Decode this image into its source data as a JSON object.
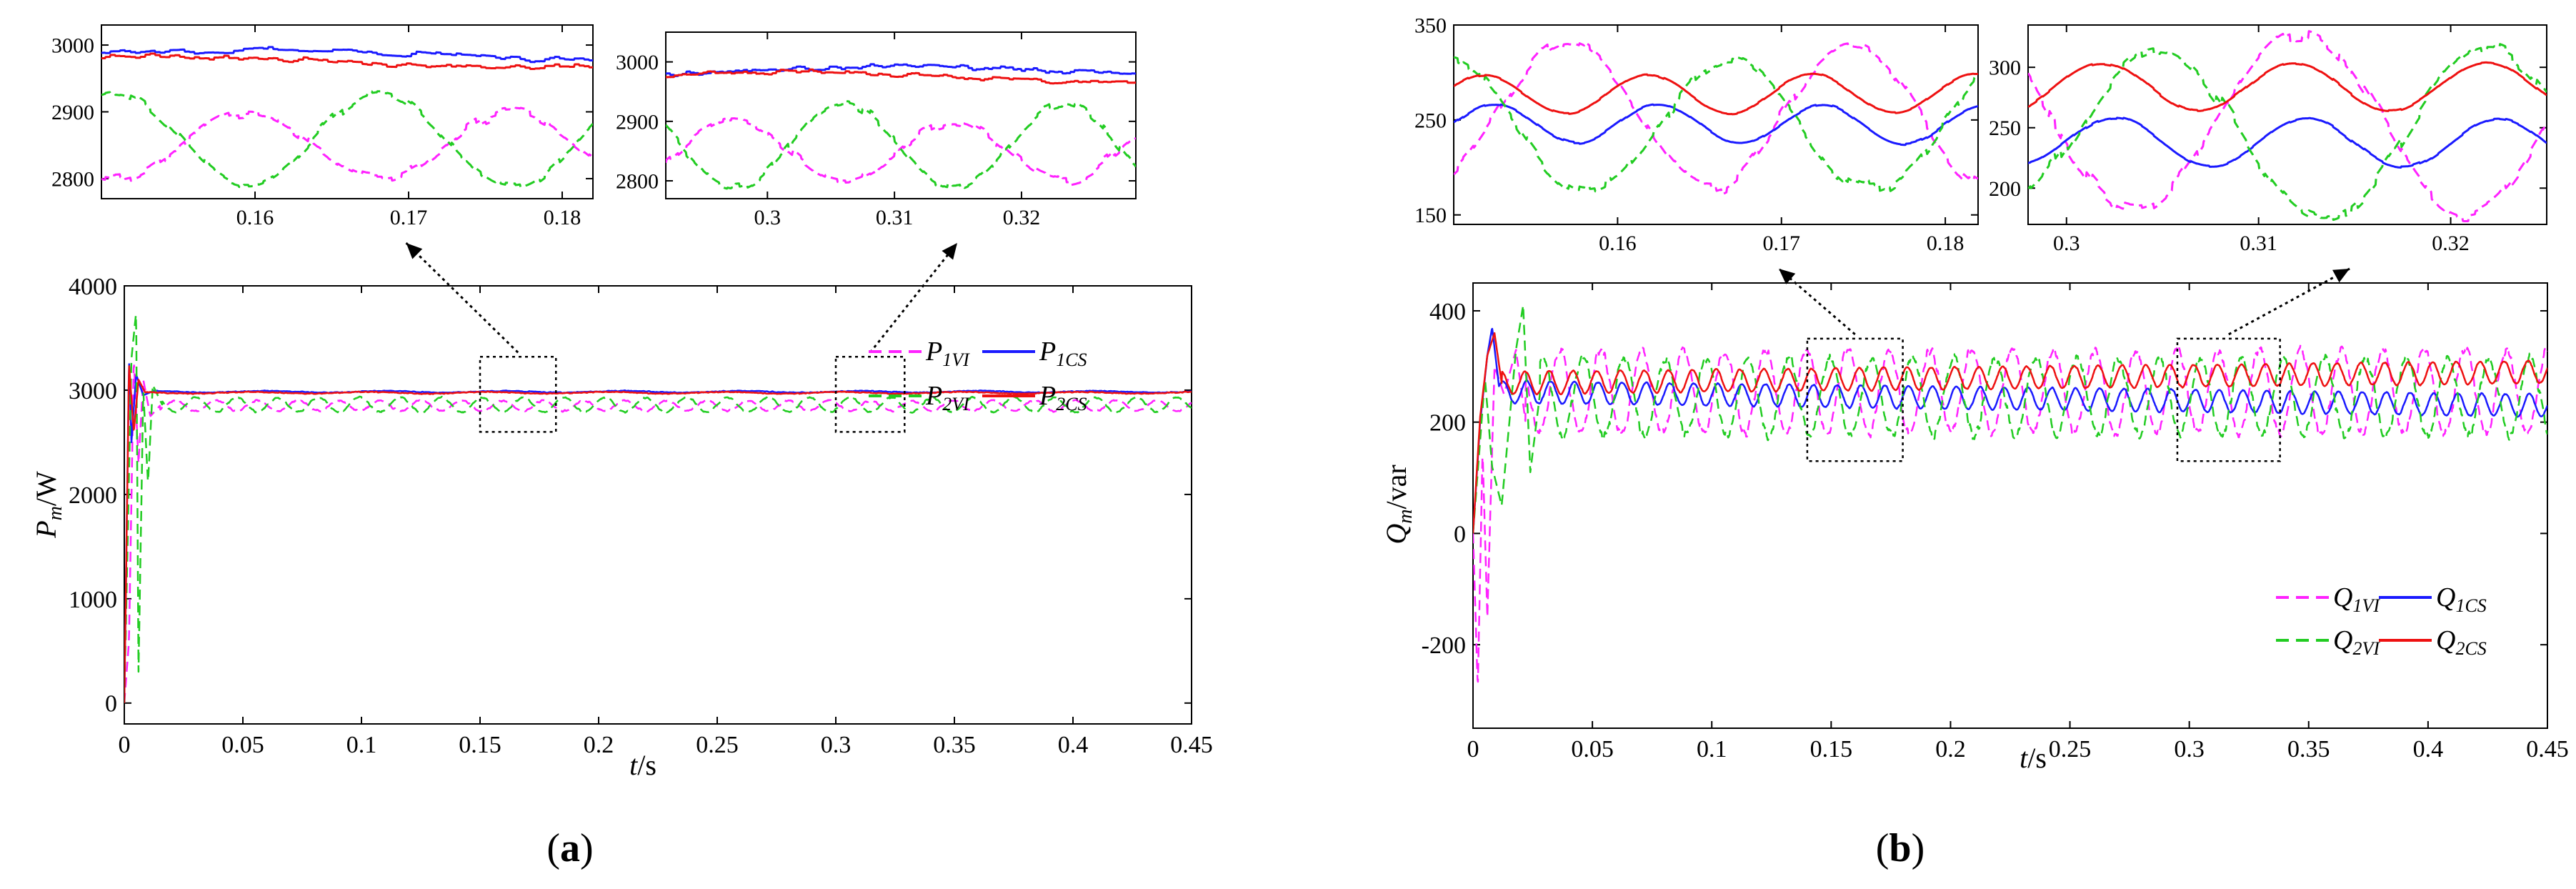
{
  "chart_data": [
    {
      "id": "a",
      "panel_label": "a",
      "type": "line",
      "xlabel": "t",
      "xlabel_unit": "/s",
      "ylabel": "P",
      "ylabel_sub": "m",
      "ylabel_unit": "/W",
      "xlim": [
        0,
        0.45
      ],
      "ylim": [
        -200,
        4000
      ],
      "xticks": [
        0,
        0.05,
        0.1,
        0.15,
        0.2,
        0.25,
        0.3,
        0.35,
        0.4,
        0.45
      ],
      "xtick_labels": [
        "0",
        "0.05",
        "0.1",
        "0.15",
        "0.2",
        "0.25",
        "0.3",
        "0.35",
        "0.4",
        "0.45"
      ],
      "yticks": [
        0,
        1000,
        2000,
        3000,
        4000
      ],
      "ytick_labels": [
        "0",
        "1000",
        "2000",
        "3000",
        "4000"
      ],
      "legend_position": "top-right",
      "series": [
        {
          "key": "P1VI",
          "name": "P",
          "sub": "1VI",
          "color": "#ff22ff",
          "dash": "dashed",
          "base": 2850,
          "amp": 50,
          "freq": 58,
          "phase": 0.0,
          "noise": 12,
          "transient": [
            [
              0,
              0
            ],
            [
              0.002,
              600
            ],
            [
              0.004,
              3300
            ],
            [
              0.006,
              2300
            ],
            [
              0.008,
              3100
            ],
            [
              0.011,
              2750
            ],
            [
              0.015,
              2850
            ]
          ]
        },
        {
          "key": "P1CS",
          "name": "P",
          "sub": "1CS",
          "color": "#1a1aff",
          "dash": "solid",
          "base": 2985,
          "amp": 8,
          "freq": 20,
          "phase": 0.3,
          "noise": 6,
          "transient": [
            [
              0,
              0
            ],
            [
              0.002,
              3300
            ],
            [
              0.003,
              2500
            ],
            [
              0.005,
              3150
            ],
            [
              0.008,
              2950
            ],
            [
              0.012,
              2990
            ]
          ]
        },
        {
          "key": "P2VI",
          "name": "P",
          "sub": "2VI",
          "color": "#22cc22",
          "dash": "dashed",
          "base": 2860,
          "amp": 70,
          "freq": 58,
          "phase": 3.14,
          "noise": 12,
          "transient": [
            [
              0,
              0
            ],
            [
              0.003,
              3300
            ],
            [
              0.005,
              3750
            ],
            [
              0.006,
              300
            ],
            [
              0.008,
              3000
            ],
            [
              0.01,
              2100
            ],
            [
              0.012,
              3050
            ],
            [
              0.016,
              2860
            ]
          ]
        },
        {
          "key": "P2CS",
          "name": "P",
          "sub": "2CS",
          "color": "#ee1111",
          "dash": "solid",
          "base": 2975,
          "amp": 8,
          "freq": 20,
          "phase": 1.2,
          "noise": 6,
          "transient": [
            [
              0,
              0
            ],
            [
              0.002,
              3250
            ],
            [
              0.004,
              2600
            ],
            [
              0.006,
              3100
            ],
            [
              0.009,
              2970
            ]
          ]
        }
      ],
      "insets": [
        {
          "xlim": [
            0.15,
            0.182
          ],
          "ylim": [
            2770,
            3030
          ],
          "xticks": [
            0.16,
            0.17,
            0.18
          ],
          "xtick_labels": [
            "0.16",
            "0.17",
            "0.18"
          ],
          "yticks": [
            2800,
            2900,
            3000
          ],
          "ytick_labels": [
            "2800",
            "2900",
            "3000"
          ]
        },
        {
          "xlim": [
            0.292,
            0.329
          ],
          "ylim": [
            2770,
            3050
          ],
          "xticks": [
            0.3,
            0.31,
            0.32
          ],
          "xtick_labels": [
            "0.3",
            "0.31",
            "0.32"
          ],
          "yticks": [
            2800,
            2900,
            3000
          ],
          "ytick_labels": [
            "2800",
            "2900",
            "3000"
          ]
        }
      ],
      "zoom_boxes": [
        {
          "x": [
            0.15,
            0.182
          ],
          "y": [
            2600,
            3320
          ]
        },
        {
          "x": [
            0.3,
            0.329
          ],
          "y": [
            2600,
            3320
          ]
        }
      ]
    },
    {
      "id": "b",
      "panel_label": "b",
      "type": "line",
      "xlabel": "t",
      "xlabel_unit": "/s",
      "ylabel": "Q",
      "ylabel_sub": "m",
      "ylabel_unit": "/var",
      "xlim": [
        0,
        0.45
      ],
      "ylim": [
        -350,
        450
      ],
      "xticks": [
        0,
        0.05,
        0.1,
        0.15,
        0.2,
        0.25,
        0.3,
        0.35,
        0.4,
        0.45
      ],
      "xtick_labels": [
        "0",
        "0.05",
        "0.1",
        "0.15",
        "0.2",
        "0.25",
        "0.3",
        "0.35",
        "0.4",
        "0.45"
      ],
      "yticks": [
        -200,
        0,
        200,
        400
      ],
      "ytick_labels": [
        "-200",
        "0",
        "200",
        "400"
      ],
      "legend_position": "bottom-right",
      "series": [
        {
          "key": "Q1VI",
          "name": "Q",
          "sub": "1VI",
          "color": "#ff22ff",
          "dash": "dashed",
          "base": 255,
          "amp": 75,
          "freq": 58,
          "phase": 0.9,
          "noise": 12,
          "transient": [
            [
              0,
              0
            ],
            [
              0.002,
              -280
            ],
            [
              0.004,
              150
            ],
            [
              0.006,
              -150
            ],
            [
              0.009,
              300
            ],
            [
              0.013,
              250
            ],
            [
              0.018,
              330
            ],
            [
              0.022,
              200
            ]
          ]
        },
        {
          "key": "Q1CS",
          "name": "Q",
          "sub": "1CS",
          "color": "#1a1aff",
          "dash": "solid",
          "base": 255,
          "amp": 20,
          "freq": 100,
          "phase": 0.0,
          "drift": -25,
          "noise": 2,
          "transient": [
            [
              0,
              0
            ],
            [
              0.003,
              200
            ],
            [
              0.006,
              320
            ],
            [
              0.008,
              370
            ],
            [
              0.011,
              260
            ]
          ]
        },
        {
          "key": "Q2VI",
          "name": "Q",
          "sub": "2VI",
          "color": "#22cc22",
          "dash": "dashed",
          "base": 245,
          "amp": 70,
          "freq": 58,
          "phase": 3.6,
          "noise": 12,
          "transient": [
            [
              0,
              0
            ],
            [
              0.005,
              280
            ],
            [
              0.008,
              120
            ],
            [
              0.012,
              50
            ],
            [
              0.018,
              330
            ],
            [
              0.021,
              410
            ],
            [
              0.024,
              110
            ],
            [
              0.028,
              250
            ]
          ]
        },
        {
          "key": "Q2CS",
          "name": "Q",
          "sub": "2CS",
          "color": "#ee1111",
          "dash": "solid",
          "base": 270,
          "amp": 20,
          "freq": 100,
          "phase": 0.4,
          "drift": 20,
          "noise": 2,
          "transient": [
            [
              0,
              0
            ],
            [
              0.003,
              210
            ],
            [
              0.006,
              320
            ],
            [
              0.009,
              360
            ],
            [
              0.012,
              270
            ]
          ]
        }
      ],
      "insets": [
        {
          "xlim": [
            0.15,
            0.182
          ],
          "ylim": [
            140,
            350
          ],
          "xticks": [
            0.16,
            0.17,
            0.18
          ],
          "xtick_labels": [
            "0.16",
            "0.17",
            "0.18"
          ],
          "yticks": [
            150,
            250,
            350
          ],
          "ytick_labels": [
            "150",
            "250",
            "350"
          ]
        },
        {
          "xlim": [
            0.298,
            0.325
          ],
          "ylim": [
            170,
            335
          ],
          "xticks": [
            0.3,
            0.31,
            0.32
          ],
          "xtick_labels": [
            "0.3",
            "0.31",
            "0.32"
          ],
          "yticks": [
            200,
            250,
            300
          ],
          "ytick_labels": [
            "200",
            "250",
            "300"
          ]
        }
      ],
      "zoom_boxes": [
        {
          "x": [
            0.14,
            0.18
          ],
          "y": [
            130,
            350
          ]
        },
        {
          "x": [
            0.295,
            0.338
          ],
          "y": [
            130,
            350
          ]
        }
      ]
    }
  ]
}
